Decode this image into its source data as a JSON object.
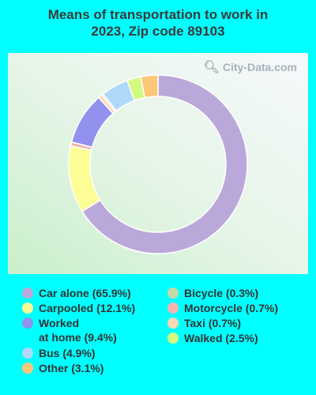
{
  "title_line1": "Means of transportation to work in",
  "title_line2": "2023, Zip code 89103",
  "watermark": "City-Data.com",
  "chart_data": {
    "type": "pie",
    "donut": true,
    "series": [
      {
        "name": "Car alone",
        "value": 65.9,
        "label": "Car alone (65.9%)",
        "color": "#bba8da"
      },
      {
        "name": "Carpooled",
        "value": 12.1,
        "label": "Carpooled (12.1%)",
        "color": "#fdfd95"
      },
      {
        "name": "Motorcycle",
        "value": 0.7,
        "label": "Motorcycle (0.7%)",
        "color": "#f4b4b4"
      },
      {
        "name": "Worked at home",
        "value": 9.4,
        "label": [
          "Worked",
          "at home (9.4%)"
        ],
        "color": "#9191ee"
      },
      {
        "name": "Taxi",
        "value": 0.7,
        "label": "Taxi (0.7%)",
        "color": "#fcd8b4"
      },
      {
        "name": "Bicycle",
        "value": 0.3,
        "label": "Bicycle (0.3%)",
        "color": "#c8d8a8"
      },
      {
        "name": "Bus",
        "value": 4.9,
        "label": "Bus (4.9%)",
        "color": "#b0d8fa"
      },
      {
        "name": "Walked",
        "value": 2.5,
        "label": "Walked (2.5%)",
        "color": "#d4fa80"
      },
      {
        "name": "Other",
        "value": 3.1,
        "label": "Other (3.1%)",
        "color": "#fcc878"
      }
    ],
    "slice_order_clockwise": [
      "Car alone",
      "Carpooled",
      "Motorcycle",
      "Worked at home",
      "Taxi",
      "Bicycle",
      "Bus",
      "Walked",
      "Other"
    ],
    "legend_columns": [
      [
        "Car alone",
        "Carpooled",
        "Worked at home",
        "Bus",
        "Other"
      ],
      [
        "Bicycle",
        "Motorcycle",
        "Taxi",
        "Walked"
      ]
    ]
  }
}
